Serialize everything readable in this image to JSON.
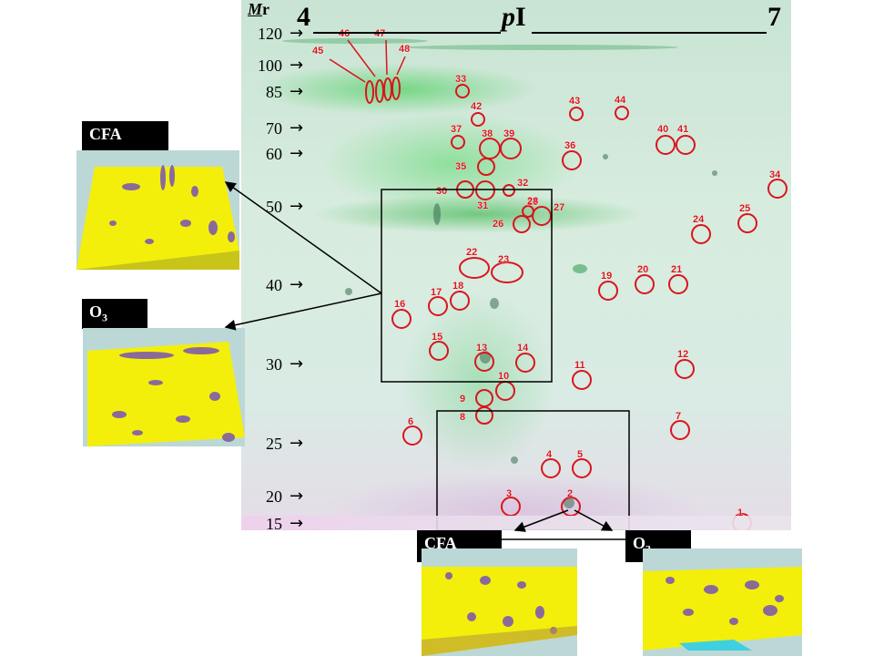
{
  "axis": {
    "mr_title_italic": "M",
    "mr_title_rest": "r",
    "mr_ticks": [
      "120",
      "100",
      "85",
      "70",
      "60",
      "50",
      "40",
      "30",
      "25",
      "20",
      "15"
    ],
    "pi_left": "4",
    "pi_center_italic": "p",
    "pi_center_rest": "I",
    "pi_right": "7"
  },
  "thumbnails": {
    "left_top_label": "CFA",
    "left_bottom_label": "O",
    "left_bottom_sub": "3",
    "bottom_left_label": "CFA",
    "bottom_right_label": "O",
    "bottom_right_sub": "3"
  },
  "spots": [
    "1",
    "2",
    "3",
    "4",
    "5",
    "6",
    "7",
    "8",
    "9",
    "10",
    "11",
    "12",
    "13",
    "14",
    "15",
    "16",
    "17",
    "18",
    "19",
    "20",
    "21",
    "22",
    "23",
    "24",
    "25",
    "26",
    "27",
    "28",
    "29",
    "30",
    "31",
    "32",
    "33",
    "34",
    "35",
    "36",
    "37",
    "38",
    "39",
    "40",
    "41",
    "42",
    "43",
    "44",
    "45",
    "46",
    "47",
    "48"
  ],
  "colors": {
    "circle": "#d9151d",
    "gel_green": "#22b34a",
    "surface_yellow": "#f3ef0a"
  }
}
